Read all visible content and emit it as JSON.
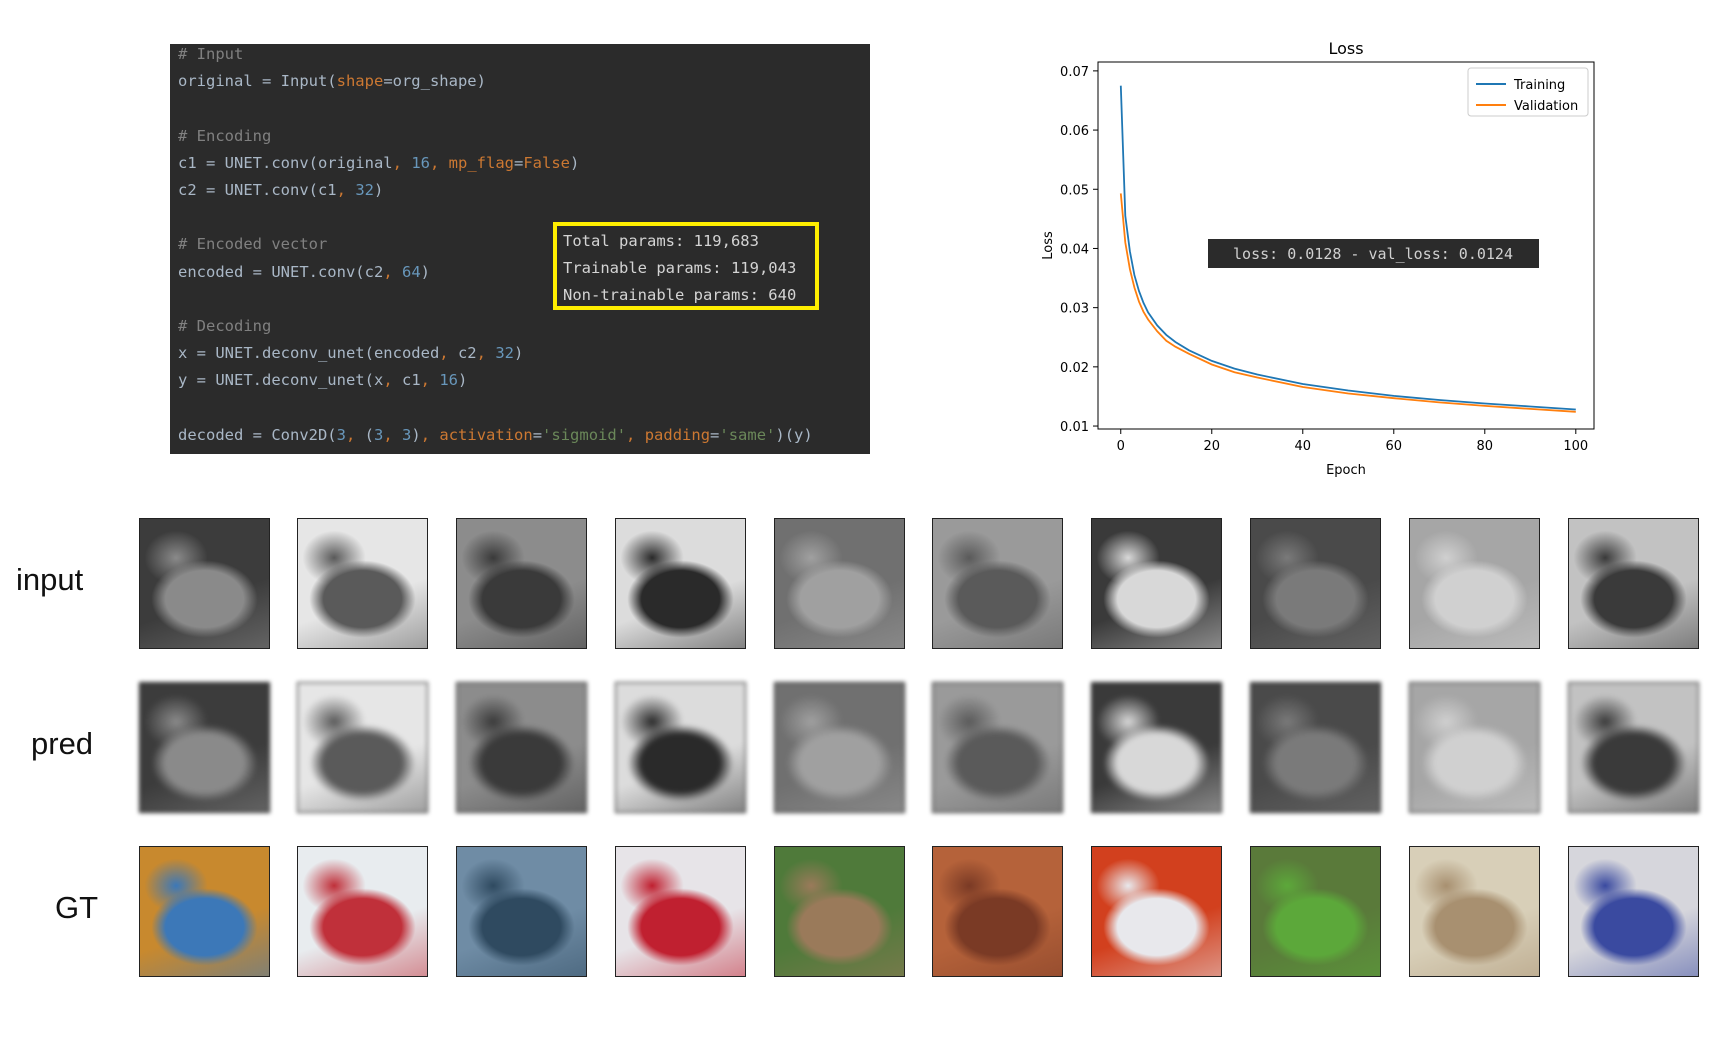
{
  "code": {
    "lines": [
      {
        "segments": [
          {
            "t": "# Input",
            "c": "comment"
          }
        ]
      },
      {
        "segments": [
          {
            "t": "original = Input("
          },
          {
            "t": "shape",
            "c": "arg"
          },
          {
            "t": "=org_shape)"
          }
        ]
      },
      {
        "segments": []
      },
      {
        "segments": [
          {
            "t": "# Encoding",
            "c": "comment"
          }
        ]
      },
      {
        "segments": [
          {
            "t": "c1 = UNET.conv(original"
          },
          {
            "t": ", ",
            "c": "kw"
          },
          {
            "t": "16",
            "c": "num"
          },
          {
            "t": ", ",
            "c": "kw"
          },
          {
            "t": "mp_flag",
            "c": "arg"
          },
          {
            "t": "="
          },
          {
            "t": "False",
            "c": "kw"
          },
          {
            "t": ")"
          }
        ]
      },
      {
        "segments": [
          {
            "t": "c2 = UNET.conv(c1"
          },
          {
            "t": ", ",
            "c": "kw"
          },
          {
            "t": "32",
            "c": "num"
          },
          {
            "t": ")"
          }
        ]
      },
      {
        "segments": []
      },
      {
        "segments": [
          {
            "t": "# Encoded vector",
            "c": "comment"
          }
        ]
      },
      {
        "segments": [
          {
            "t": "encoded = UNET.conv(c2"
          },
          {
            "t": ", ",
            "c": "kw"
          },
          {
            "t": "64",
            "c": "num"
          },
          {
            "t": ")"
          }
        ]
      },
      {
        "segments": []
      },
      {
        "segments": [
          {
            "t": "# Decoding",
            "c": "comment"
          }
        ]
      },
      {
        "segments": [
          {
            "t": "x = UNET.deconv_unet(encoded"
          },
          {
            "t": ", ",
            "c": "kw"
          },
          {
            "t": "c2"
          },
          {
            "t": ", ",
            "c": "kw"
          },
          {
            "t": "32",
            "c": "num"
          },
          {
            "t": ")"
          }
        ]
      },
      {
        "segments": [
          {
            "t": "y = UNET.deconv_unet(x"
          },
          {
            "t": ", ",
            "c": "kw"
          },
          {
            "t": "c1"
          },
          {
            "t": ", ",
            "c": "kw"
          },
          {
            "t": "16",
            "c": "num"
          },
          {
            "t": ")"
          }
        ]
      },
      {
        "segments": []
      },
      {
        "segments": [
          {
            "t": "decoded = Conv2D("
          },
          {
            "t": "3",
            "c": "num"
          },
          {
            "t": ", ",
            "c": "kw"
          },
          {
            "t": "("
          },
          {
            "t": "3",
            "c": "num"
          },
          {
            "t": ", ",
            "c": "kw"
          },
          {
            "t": "3",
            "c": "num"
          },
          {
            "t": ")"
          },
          {
            "t": ", ",
            "c": "kw"
          },
          {
            "t": "activation",
            "c": "arg"
          },
          {
            "t": "="
          },
          {
            "t": "'sigmoid'",
            "c": "str"
          },
          {
            "t": ", ",
            "c": "kw"
          },
          {
            "t": "padding",
            "c": "arg"
          },
          {
            "t": "="
          },
          {
            "t": "'same'",
            "c": "str"
          },
          {
            "t": ")(y)"
          }
        ]
      }
    ],
    "params": [
      "Total params: 119,683",
      "Trainable params: 119,043",
      "Non-trainable params: 640"
    ],
    "highlight_color": "#ffee00"
  },
  "chart_data": {
    "type": "line",
    "title": "Loss",
    "xlabel": "Epoch",
    "ylabel": "Loss",
    "xlim": [
      -5,
      104
    ],
    "ylim": [
      0.0095,
      0.0715
    ],
    "xticks": [
      0,
      20,
      40,
      60,
      80,
      100
    ],
    "yticks": [
      0.01,
      0.02,
      0.03,
      0.04,
      0.05,
      0.06,
      0.07
    ],
    "legend_position": "top-right",
    "annotation": "loss: 0.0128 - val_loss: 0.0124",
    "x": [
      0,
      1,
      2,
      3,
      4,
      5,
      6,
      8,
      10,
      12,
      15,
      20,
      25,
      30,
      40,
      50,
      60,
      70,
      80,
      90,
      100
    ],
    "series": [
      {
        "name": "Training",
        "color": "#1f77b4",
        "values": [
          0.0675,
          0.0455,
          0.0395,
          0.0355,
          0.0328,
          0.0308,
          0.0292,
          0.027,
          0.0254,
          0.0242,
          0.0228,
          0.021,
          0.0197,
          0.0187,
          0.0171,
          0.016,
          0.0151,
          0.0144,
          0.0138,
          0.0133,
          0.0128
        ]
      },
      {
        "name": "Validation",
        "color": "#ff7f0e",
        "values": [
          0.0493,
          0.041,
          0.0365,
          0.0334,
          0.031,
          0.0293,
          0.028,
          0.026,
          0.0244,
          0.0234,
          0.0222,
          0.0204,
          0.0191,
          0.0182,
          0.0166,
          0.0155,
          0.0147,
          0.014,
          0.0134,
          0.0129,
          0.0124
        ]
      }
    ]
  },
  "grid": {
    "rows": [
      {
        "label": "input",
        "mode": "gray"
      },
      {
        "label": "pred",
        "mode": "blur"
      },
      {
        "label": "GT",
        "mode": "color"
      }
    ],
    "images": [
      {
        "bg": "#3c3c3c",
        "fg": "#8a8a8a",
        "color_bg": "#c8892e",
        "color_fg": "#3c78b8"
      },
      {
        "bg": "#e6e6e6",
        "fg": "#5a5a5a",
        "color_bg": "#e8ecef",
        "color_fg": "#c0303a"
      },
      {
        "bg": "#8c8c8c",
        "fg": "#3a3a3a",
        "color_bg": "#6f8ca5",
        "color_fg": "#2f4a60"
      },
      {
        "bg": "#dcdcdc",
        "fg": "#2a2a2a",
        "color_bg": "#e7e4e8",
        "color_fg": "#c02030"
      },
      {
        "bg": "#707070",
        "fg": "#a0a0a0",
        "color_bg": "#4f7a3a",
        "color_fg": "#9a7a5a"
      },
      {
        "bg": "#9a9a9a",
        "fg": "#5a5a5a",
        "color_bg": "#b5623a",
        "color_fg": "#7a3a25"
      },
      {
        "bg": "#3a3a3a",
        "fg": "#d8d8d8",
        "color_bg": "#d2401e",
        "color_fg": "#e8e8ec"
      },
      {
        "bg": "#4a4a4a",
        "fg": "#7a7a7a",
        "color_bg": "#5a7a3a",
        "color_fg": "#5ca83a"
      },
      {
        "bg": "#a6a6a6",
        "fg": "#d0d0d0",
        "color_bg": "#d8cfb8",
        "color_fg": "#a89070"
      },
      {
        "bg": "#c2c2c2",
        "fg": "#3a3a3a",
        "color_bg": "#d6d6dc",
        "color_fg": "#3a4aa0"
      }
    ]
  }
}
